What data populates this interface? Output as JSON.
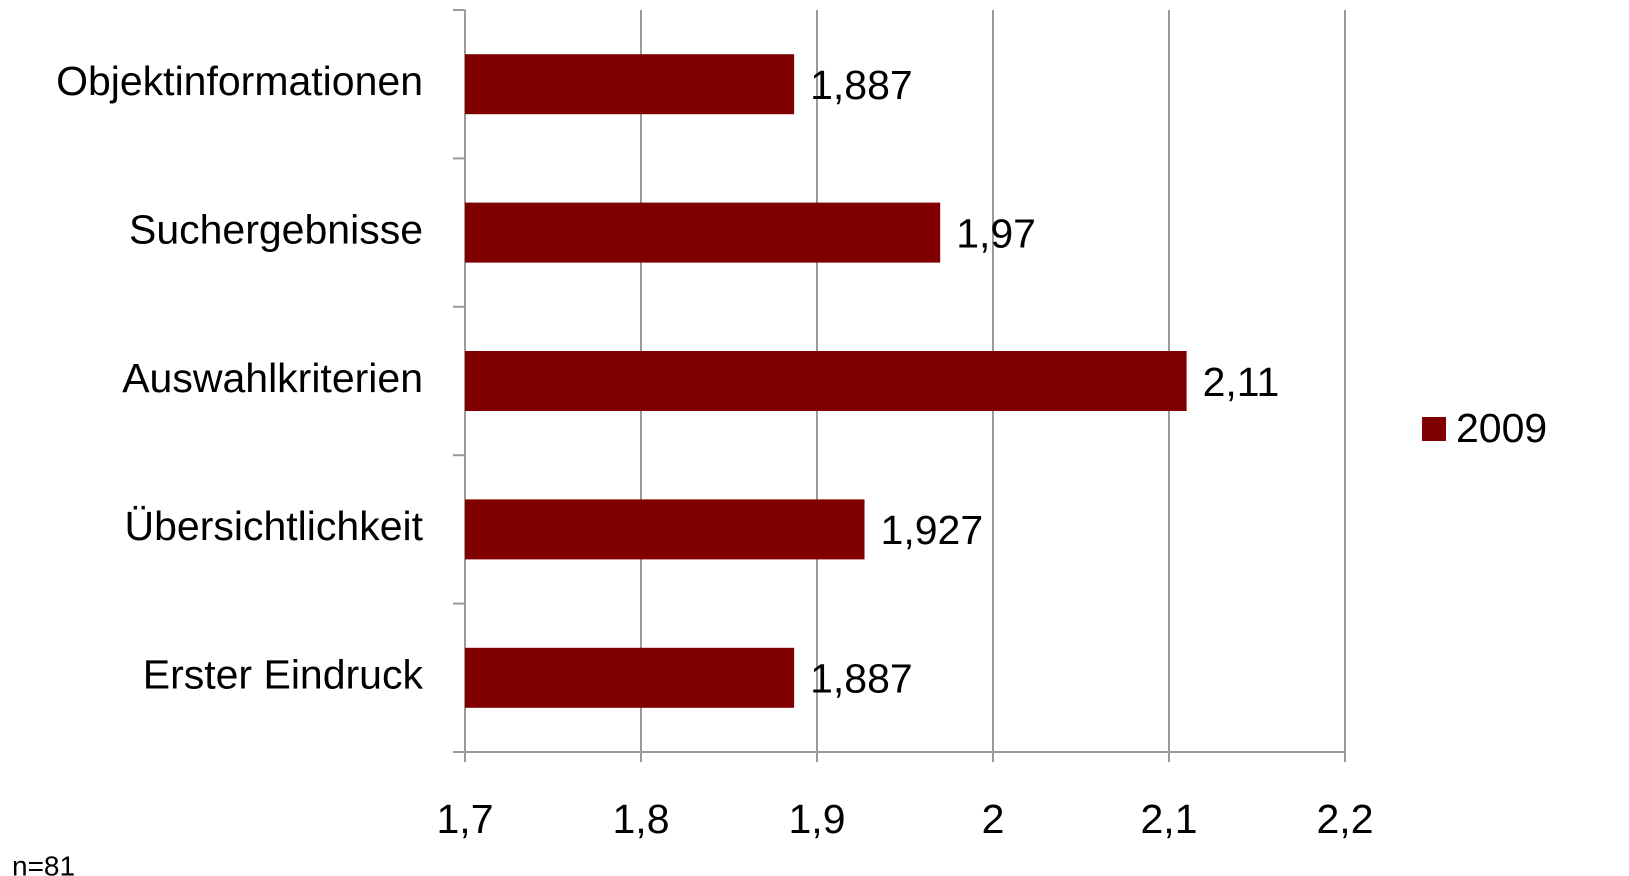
{
  "chart_data": {
    "type": "bar",
    "orientation": "horizontal",
    "categories": [
      "Objektinformationen",
      "Suchergebnisse",
      "Auswahlkriterien",
      "Übersichtlichkeit",
      "Erster Eindruck"
    ],
    "series": [
      {
        "name": "2009",
        "color": "#800000",
        "values": [
          1.887,
          1.97,
          2.11,
          1.927,
          1.887
        ],
        "value_labels": [
          "1,887",
          "1,97",
          "2,11",
          "1,927",
          "1,887"
        ]
      }
    ],
    "xlim": [
      1.7,
      2.2
    ],
    "xticks": [
      {
        "value": 1.7,
        "label": "1,7"
      },
      {
        "value": 1.8,
        "label": "1,8"
      },
      {
        "value": 1.9,
        "label": "1,9"
      },
      2,
      {
        "value": 2.1,
        "label": "2,1"
      },
      {
        "value": 2.2,
        "label": "2,2"
      }
    ],
    "grid": true,
    "legend": "right",
    "note": "n=81"
  }
}
